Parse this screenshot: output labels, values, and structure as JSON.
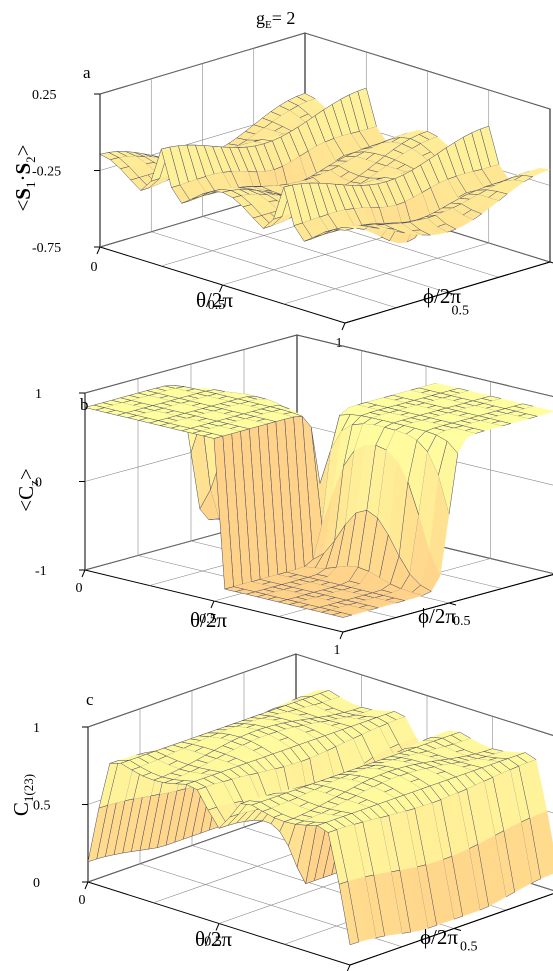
{
  "title": {
    "main": "g",
    "sub": "E",
    "rest": "= 2"
  },
  "chart_data": [
    {
      "type": "surface3d",
      "panel": "a",
      "zlabel_parts": [
        "<",
        "S",
        "1",
        "·",
        "S",
        "2",
        ">"
      ],
      "xlabel": "θ/2π",
      "ylabel": "ϕ/2π",
      "zticks": [
        "0.25",
        "-0.25",
        "-0.75"
      ],
      "xticks": [
        "0",
        "0.5",
        "1"
      ],
      "yticks": [
        "0.5",
        "1"
      ],
      "xlim": [
        0,
        1
      ],
      "ylim": [
        0,
        1
      ],
      "zlim": [
        -0.75,
        0.25
      ],
      "grid": true,
      "surface_color": "#ffff99"
    },
    {
      "type": "surface3d",
      "panel": "b",
      "zlabel_parts": [
        "<",
        "C",
        "z",
        ">"
      ],
      "xlabel": "θ/2π",
      "ylabel": "ϕ/2π",
      "zticks": [
        "1",
        "0",
        "-1"
      ],
      "xticks": [
        "0",
        "0.5",
        "1"
      ],
      "yticks": [
        "0.5",
        "1"
      ],
      "xlim": [
        0,
        1
      ],
      "ylim": [
        0,
        1
      ],
      "zlim": [
        -1,
        1
      ],
      "grid": true,
      "surface_color": "#ffff99"
    },
    {
      "type": "surface3d",
      "panel": "c",
      "zlabel_parts": [
        "C",
        "1(23)"
      ],
      "xlabel": "θ/2π",
      "ylabel": "ϕ/2π",
      "zticks": [
        "1",
        "0.5",
        "0"
      ],
      "xticks": [
        "0",
        "0.5",
        "1"
      ],
      "yticks": [
        "0.5",
        "1"
      ],
      "xlim": [
        0,
        1
      ],
      "ylim": [
        0,
        1
      ],
      "zlim": [
        0,
        1
      ],
      "grid": true,
      "surface_color": "#ffff99"
    }
  ]
}
